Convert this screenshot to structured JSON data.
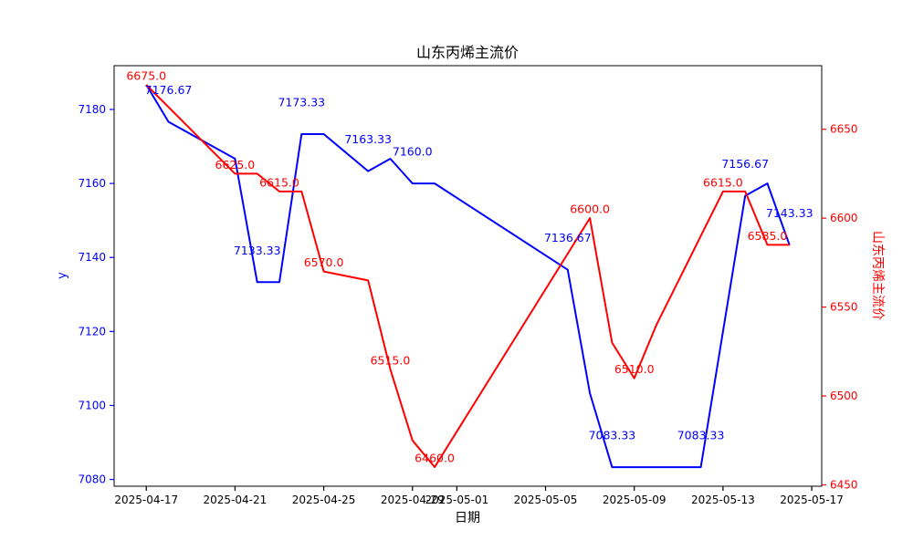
{
  "title": "山东丙烯主流价",
  "axes": {
    "xlabel": "日期",
    "ylabel_left": "y",
    "ylabel_right": "山东丙烯主流价"
  },
  "colors": {
    "left_series": "#0000ff",
    "right_series": "#ff0000",
    "axis": "#000000",
    "background": "#ffffff"
  },
  "chart_data": {
    "type": "line",
    "title": "山东丙烯主流价",
    "xlabel": "日期",
    "ylabel_left": "y",
    "ylabel_right": "山东丙烯主流价",
    "grid": false,
    "legend": "none",
    "x": [
      "2025-04-17",
      "2025-04-18",
      "2025-04-19",
      "2025-04-20",
      "2025-04-21",
      "2025-04-22",
      "2025-04-23",
      "2025-04-24",
      "2025-04-25",
      "2025-04-26",
      "2025-04-27",
      "2025-04-28",
      "2025-04-29",
      "2025-04-30",
      "2025-05-06",
      "2025-05-07",
      "2025-05-08",
      "2025-05-09",
      "2025-05-10",
      "2025-05-11",
      "2025-05-12",
      "2025-05-13",
      "2025-05-14",
      "2025-05-15",
      "2025-05-16"
    ],
    "series": [
      {
        "name": "y",
        "axis": "left",
        "color": "#0000ff",
        "values": [
          7186.67,
          7176.67,
          7173.33,
          7170.0,
          7166.67,
          7133.33,
          7133.33,
          7173.33,
          7173.33,
          7168.33,
          7163.33,
          7166.67,
          7160.0,
          7160.0,
          7136.67,
          7103.33,
          7083.33,
          7083.33,
          7083.33,
          7083.33,
          7083.33,
          7120.0,
          7156.67,
          7160.0,
          7143.33
        ]
      },
      {
        "name": "山东丙烯主流价",
        "axis": "right",
        "color": "#ff0000",
        "values": [
          6675.0,
          6662.5,
          6650.0,
          6637.5,
          6625.0,
          6625.0,
          6615.0,
          6615.0,
          6570.0,
          6567.5,
          6565.0,
          6515.0,
          6475.0,
          6460.0,
          6580.0,
          6600.0,
          6530.0,
          6510.0,
          6540.0,
          6565.0,
          6590.0,
          6615.0,
          6615.0,
          6585.0,
          6585.0
        ]
      }
    ],
    "x_tick_labels": [
      "2025-04-17",
      "2025-04-21",
      "2025-04-25",
      "2025-04-29",
      "2025-05-01",
      "2025-05-05",
      "2025-05-09",
      "2025-05-13",
      "2025-05-17"
    ],
    "y_ticks_left": [
      7080,
      7100,
      7120,
      7140,
      7160,
      7180
    ],
    "y_ticks_right": [
      6450,
      6500,
      6550,
      6600,
      6650
    ],
    "ylim_left": [
      7078.17,
      7191.83
    ],
    "ylim_right": [
      6449.25,
      6685.75
    ],
    "margin_frac": 0.05,
    "annotations": [
      {
        "series": 0,
        "x": "2025-04-18",
        "y": 7176.67,
        "text": "7176.67"
      },
      {
        "series": 0,
        "x": "2025-04-22",
        "y": 7133.33,
        "text": "7133.33"
      },
      {
        "series": 0,
        "x": "2025-04-24",
        "y": 7173.33,
        "text": "7173.33"
      },
      {
        "series": 0,
        "x": "2025-04-27",
        "y": 7163.33,
        "text": "7163.33"
      },
      {
        "series": 0,
        "x": "2025-04-29",
        "y": 7160.0,
        "text": "7160.0"
      },
      {
        "series": 0,
        "x": "2025-05-06",
        "y": 7136.67,
        "text": "7136.67"
      },
      {
        "series": 0,
        "x": "2025-05-08",
        "y": 7083.33,
        "text": "7083.33"
      },
      {
        "series": 0,
        "x": "2025-05-12",
        "y": 7083.33,
        "text": "7083.33"
      },
      {
        "series": 0,
        "x": "2025-05-14",
        "y": 7156.67,
        "text": "7156.67"
      },
      {
        "series": 0,
        "x": "2025-05-16",
        "y": 7143.33,
        "text": "7143.33"
      },
      {
        "series": 1,
        "x": "2025-04-17",
        "y": 6675.0,
        "text": "6675.0"
      },
      {
        "series": 1,
        "x": "2025-04-21",
        "y": 6625.0,
        "text": "6625.0"
      },
      {
        "series": 1,
        "x": "2025-04-23",
        "y": 6615.0,
        "text": "6615.0"
      },
      {
        "series": 1,
        "x": "2025-04-25",
        "y": 6570.0,
        "text": "6570.0"
      },
      {
        "series": 1,
        "x": "2025-04-28",
        "y": 6515.0,
        "text": "6515.0"
      },
      {
        "series": 1,
        "x": "2025-04-30",
        "y": 6460.0,
        "text": "6460.0"
      },
      {
        "series": 1,
        "x": "2025-05-07",
        "y": 6600.0,
        "text": "6600.0"
      },
      {
        "series": 1,
        "x": "2025-05-09",
        "y": 6510.0,
        "text": "6510.0"
      },
      {
        "series": 1,
        "x": "2025-05-13",
        "y": 6615.0,
        "text": "6615.0"
      },
      {
        "series": 1,
        "x": "2025-05-15",
        "y": 6585.0,
        "text": "6585.0"
      }
    ]
  }
}
